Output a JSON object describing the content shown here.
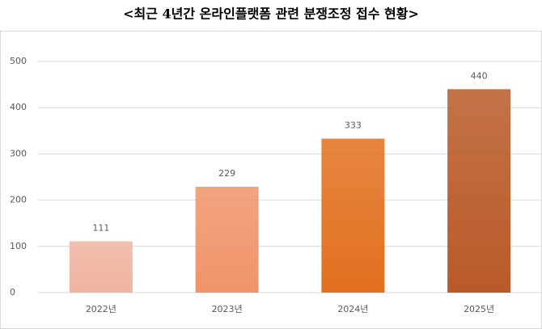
{
  "chart_data": {
    "type": "bar",
    "title": "<최근 4년간 온라인플랫폼 관련 분쟁조정 접수 현황>",
    "categories": [
      "2022년",
      "2023년",
      "2024년",
      "2025년"
    ],
    "values": [
      111,
      229,
      333,
      440
    ],
    "colors": [
      "#f0b4a0",
      "#f0946a",
      "#e2701f",
      "#b95a28"
    ],
    "ylim": [
      0,
      500
    ],
    "yticks": [
      0,
      100,
      200,
      300,
      400,
      500
    ],
    "grid": true
  }
}
